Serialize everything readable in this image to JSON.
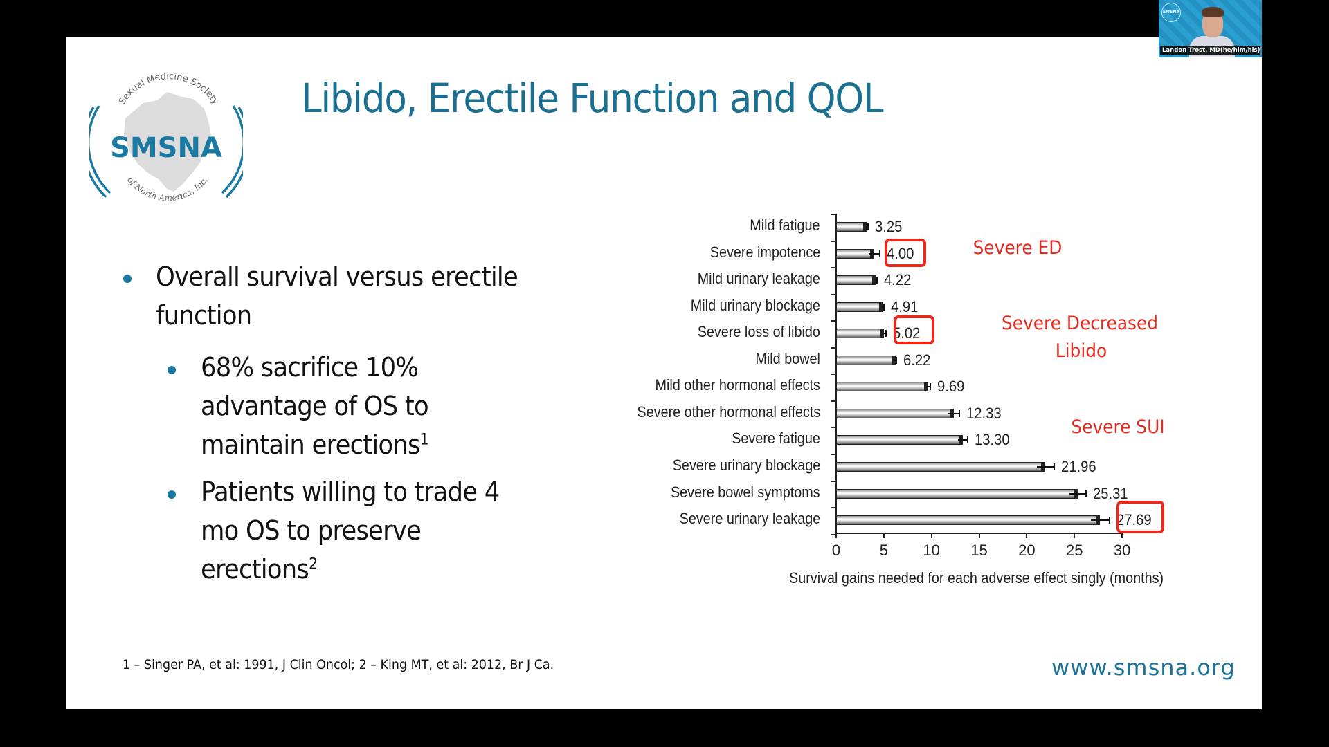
{
  "slide": {
    "title": "Libido, Erectile Function and QOL",
    "logo": {
      "top_arc_text": "Sexual Medicine Society",
      "center_text": "SMSNA",
      "bottom_arc_text": "of North America, Inc."
    },
    "bullets": [
      {
        "level": 1,
        "lines": [
          "Overall survival versus erectile",
          "function"
        ]
      },
      {
        "level": 2,
        "lines": [
          "68% sacrifice 10%",
          "advantage of OS to",
          "maintain erections"
        ],
        "sup": "1"
      },
      {
        "level": 2,
        "lines": [
          "Patients willing to trade 4",
          "mo OS to preserve",
          "erections"
        ],
        "sup": "2"
      }
    ],
    "footnote": "1 – Singer PA, et al: 1991, J Clin Oncol; 2 – King MT, et al: 2012, Br J Ca.",
    "url": "www.smsna.org",
    "annotations": [
      {
        "text": "Severe ED"
      },
      {
        "text": "Severe Decreased"
      },
      {
        "text": "Libido"
      },
      {
        "text": "Severe SUI"
      }
    ]
  },
  "webcam": {
    "name_label": "Landon Trost, MD(he/him/his)",
    "logo_text": "SMSNA"
  },
  "colors": {
    "title": "#1b6f90",
    "bullet_dot": "#1a77a0",
    "highlight_red": "#e8271d",
    "url": "#1b7196"
  },
  "chart_data": {
    "type": "bar",
    "orientation": "horizontal",
    "title": "",
    "xlabel": "Survival gains needed for each adverse effect singly (months)",
    "ylabel": "",
    "xlim": [
      0,
      30
    ],
    "xticks": [
      "0",
      "5",
      "10",
      "15",
      "20",
      "25",
      "30"
    ],
    "grid": false,
    "categories": [
      "Mild fatigue",
      "Severe impotence",
      "Mild urinary leakage",
      "Mild urinary blockage",
      "Severe loss of libido",
      "Mild bowel",
      "Mild other hormonal effects",
      "Severe other hormonal effects",
      "Severe fatigue",
      "Severe urinary blockage",
      "Severe bowel symptoms",
      "Severe urinary leakage"
    ],
    "values": [
      3.25,
      4.0,
      4.22,
      4.91,
      5.02,
      6.22,
      9.69,
      12.33,
      13.3,
      21.96,
      25.31,
      27.69
    ],
    "value_labels": [
      "3.25",
      "4.00",
      "4.22",
      "4.91",
      "5.02",
      "6.22",
      "9.69",
      "12.33",
      "13.30",
      "21.96",
      "25.31",
      "27.69"
    ],
    "error_bars": [
      0.1,
      0.6,
      0.1,
      0.1,
      0.2,
      0.1,
      0.2,
      0.6,
      0.5,
      0.9,
      0.9,
      1.0
    ],
    "highlighted": [
      "Severe impotence",
      "Severe loss of libido",
      "Severe urinary leakage"
    ]
  }
}
